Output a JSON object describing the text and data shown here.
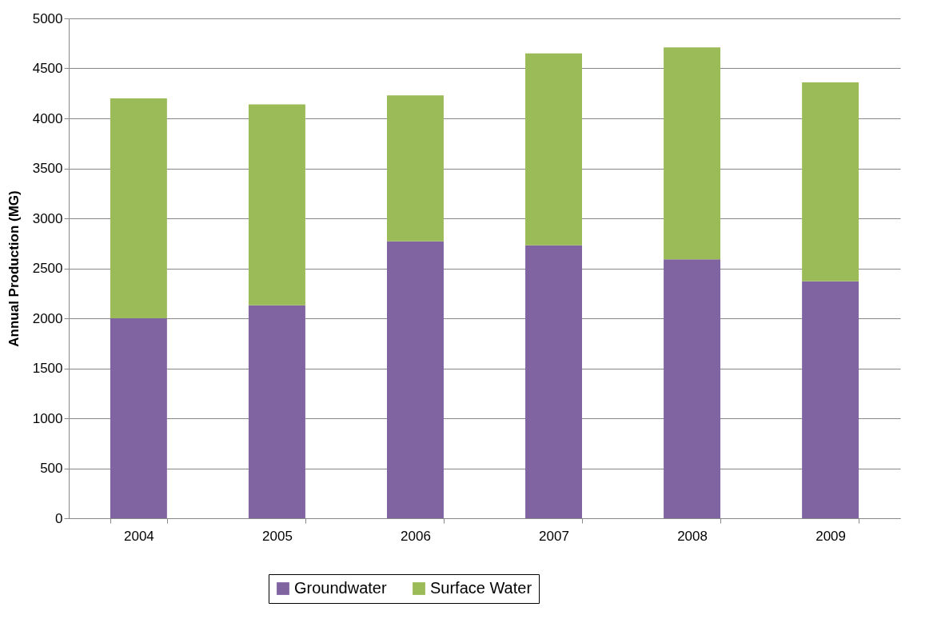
{
  "chart_data": {
    "type": "bar",
    "stacked": true,
    "ylabel": "Annual Production (MG)",
    "categories": [
      "2004",
      "2005",
      "2006",
      "2007",
      "2008",
      "2009"
    ],
    "series": [
      {
        "name": "Groundwater",
        "color": "#8064a2",
        "values": [
          2000,
          2130,
          2770,
          2730,
          2590,
          2370
        ]
      },
      {
        "name": "Surface Water",
        "color": "#9bbb59",
        "values": [
          2200,
          2010,
          1460,
          1920,
          2120,
          1990
        ]
      }
    ],
    "ylim": [
      0,
      5000
    ],
    "yticks": [
      0,
      500,
      1000,
      1500,
      2000,
      2500,
      3000,
      3500,
      4000,
      4500,
      5000
    ],
    "grid": "y",
    "legend": "bottom"
  }
}
